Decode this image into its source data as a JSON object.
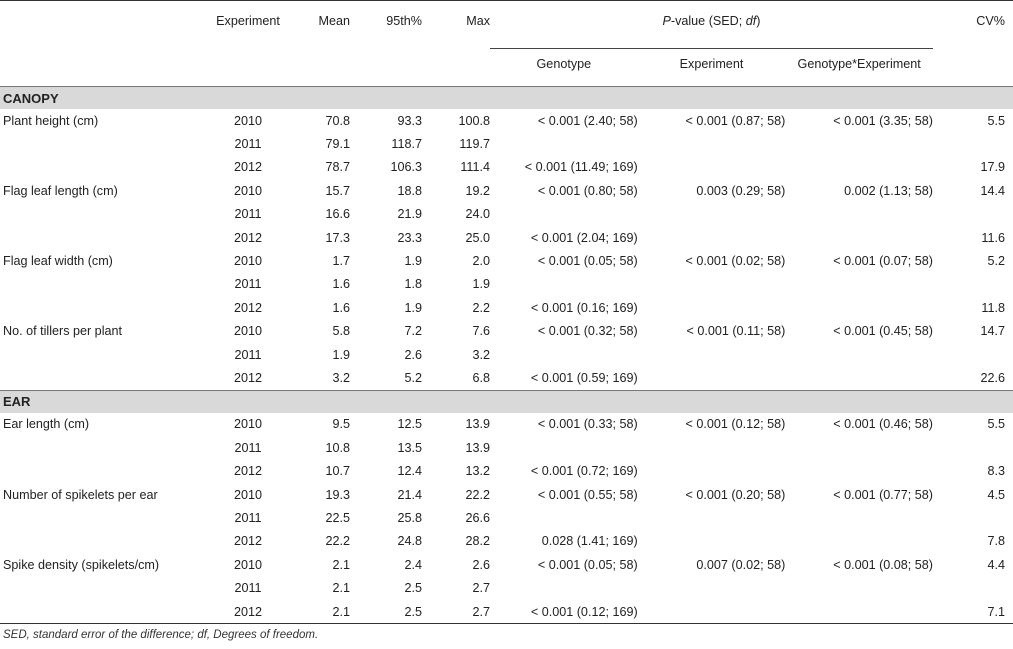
{
  "header": {
    "experiment": "Experiment",
    "mean": "Mean",
    "p95": "95th%",
    "max": "Max",
    "pvalue_prefix": "P",
    "pvalue_mid": "-value (SED; ",
    "pvalue_df": "df",
    "pvalue_suffix": ")",
    "genotype": "Genotype",
    "experiment_p": "Experiment",
    "gxe": "Genotype*Experiment",
    "cv": "CV%"
  },
  "sections": [
    {
      "name": "CANOPY",
      "traits": [
        {
          "name": "Plant height (cm)",
          "rows": [
            {
              "exp": "2010",
              "mean": "70.8",
              "p95": "93.3",
              "max": "100.8",
              "gen": "< 0.001 (2.40; 58)",
              "expp": "< 0.001 (0.87; 58)",
              "gxe": "< 0.001 (3.35; 58)",
              "cv": "5.5"
            },
            {
              "exp": "2011",
              "mean": "79.1",
              "p95": "118.7",
              "max": "119.7",
              "gen": "",
              "expp": "",
              "gxe": "",
              "cv": ""
            },
            {
              "exp": "2012",
              "mean": "78.7",
              "p95": "106.3",
              "max": "111.4",
              "gen": "< 0.001 (11.49; 169)",
              "expp": "",
              "gxe": "",
              "cv": "17.9"
            }
          ]
        },
        {
          "name": "Flag leaf length (cm)",
          "rows": [
            {
              "exp": "2010",
              "mean": "15.7",
              "p95": "18.8",
              "max": "19.2",
              "gen": "< 0.001 (0.80; 58)",
              "expp": "0.003 (0.29; 58)",
              "gxe": "0.002 (1.13; 58)",
              "cv": "14.4"
            },
            {
              "exp": "2011",
              "mean": "16.6",
              "p95": "21.9",
              "max": "24.0",
              "gen": "",
              "expp": "",
              "gxe": "",
              "cv": ""
            },
            {
              "exp": "2012",
              "mean": "17.3",
              "p95": "23.3",
              "max": "25.0",
              "gen": "< 0.001 (2.04; 169)",
              "expp": "",
              "gxe": "",
              "cv": "11.6"
            }
          ]
        },
        {
          "name": "Flag leaf width (cm)",
          "rows": [
            {
              "exp": "2010",
              "mean": "1.7",
              "p95": "1.9",
              "max": "2.0",
              "gen": "< 0.001 (0.05; 58)",
              "expp": "< 0.001 (0.02; 58)",
              "gxe": "< 0.001 (0.07; 58)",
              "cv": "5.2"
            },
            {
              "exp": "2011",
              "mean": "1.6",
              "p95": "1.8",
              "max": "1.9",
              "gen": "",
              "expp": "",
              "gxe": "",
              "cv": ""
            },
            {
              "exp": "2012",
              "mean": "1.6",
              "p95": "1.9",
              "max": "2.2",
              "gen": "< 0.001 (0.16; 169)",
              "expp": "",
              "gxe": "",
              "cv": "11.8"
            }
          ]
        },
        {
          "name": "No. of tillers per plant",
          "rows": [
            {
              "exp": "2010",
              "mean": "5.8",
              "p95": "7.2",
              "max": "7.6",
              "gen": "< 0.001 (0.32; 58)",
              "expp": "< 0.001 (0.11; 58)",
              "gxe": "< 0.001 (0.45; 58)",
              "cv": "14.7"
            },
            {
              "exp": "2011",
              "mean": "1.9",
              "p95": "2.6",
              "max": "3.2",
              "gen": "",
              "expp": "",
              "gxe": "",
              "cv": ""
            },
            {
              "exp": "2012",
              "mean": "3.2",
              "p95": "5.2",
              "max": "6.8",
              "gen": "< 0.001 (0.59; 169)",
              "expp": "",
              "gxe": "",
              "cv": "22.6"
            }
          ]
        }
      ]
    },
    {
      "name": "EAR",
      "traits": [
        {
          "name": "Ear length (cm)",
          "rows": [
            {
              "exp": "2010",
              "mean": "9.5",
              "p95": "12.5",
              "max": "13.9",
              "gen": "< 0.001 (0.33; 58)",
              "expp": "< 0.001 (0.12; 58)",
              "gxe": "< 0.001 (0.46; 58)",
              "cv": "5.5"
            },
            {
              "exp": "2011",
              "mean": "10.8",
              "p95": "13.5",
              "max": "13.9",
              "gen": "",
              "expp": "",
              "gxe": "",
              "cv": ""
            },
            {
              "exp": "2012",
              "mean": "10.7",
              "p95": "12.4",
              "max": "13.2",
              "gen": "< 0.001 (0.72; 169)",
              "expp": "",
              "gxe": "",
              "cv": "8.3"
            }
          ]
        },
        {
          "name": "Number of spikelets per ear",
          "rows": [
            {
              "exp": "2010",
              "mean": "19.3",
              "p95": "21.4",
              "max": "22.2",
              "gen": "< 0.001 (0.55; 58)",
              "expp": "< 0.001 (0.20; 58)",
              "gxe": "< 0.001 (0.77; 58)",
              "cv": "4.5"
            },
            {
              "exp": "2011",
              "mean": "22.5",
              "p95": "25.8",
              "max": "26.6",
              "gen": "",
              "expp": "",
              "gxe": "",
              "cv": ""
            },
            {
              "exp": "2012",
              "mean": "22.2",
              "p95": "24.8",
              "max": "28.2",
              "gen": "0.028 (1.41; 169)",
              "expp": "",
              "gxe": "",
              "cv": "7.8"
            }
          ]
        },
        {
          "name": "Spike density (spikelets/cm)",
          "rows": [
            {
              "exp": "2010",
              "mean": "2.1",
              "p95": "2.4",
              "max": "2.6",
              "gen": "< 0.001 (0.05; 58)",
              "expp": "0.007 (0.02; 58)",
              "gxe": "< 0.001 (0.08; 58)",
              "cv": "4.4"
            },
            {
              "exp": "2011",
              "mean": "2.1",
              "p95": "2.5",
              "max": "2.7",
              "gen": "",
              "expp": "",
              "gxe": "",
              "cv": ""
            },
            {
              "exp": "2012",
              "mean": "2.1",
              "p95": "2.5",
              "max": "2.7",
              "gen": "< 0.001 (0.12; 169)",
              "expp": "",
              "gxe": "",
              "cv": "7.1"
            }
          ]
        }
      ]
    }
  ],
  "footnote": "SED, standard error of the difference; df, Degrees of freedom."
}
